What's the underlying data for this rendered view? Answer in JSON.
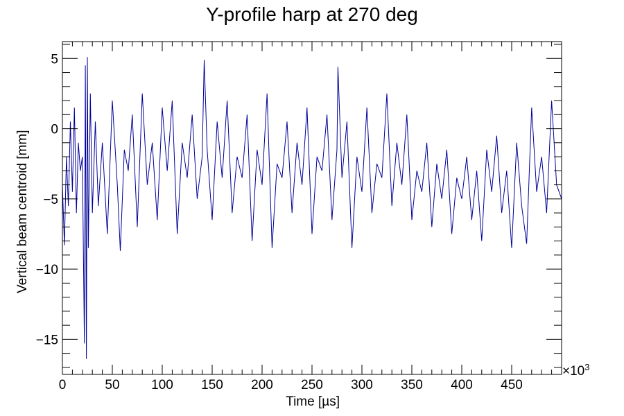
{
  "chart_data": {
    "type": "line",
    "title": "Y-profile harp at 270 deg",
    "xlabel": "Time [µs]",
    "ylabel": "Vertical beam centroid [mm]",
    "x_multiplier_label": "×10",
    "x_multiplier_exponent": "3",
    "xlim": [
      0,
      500
    ],
    "ylim": [
      -17.5,
      6.2
    ],
    "x_ticks": [
      0,
      50,
      100,
      150,
      200,
      250,
      300,
      350,
      400,
      450
    ],
    "x_tick_labels": [
      "0",
      "50",
      "100",
      "150",
      "200",
      "250",
      "300",
      "350",
      "400",
      "450"
    ],
    "y_ticks": [
      -15,
      -10,
      -5,
      0,
      5
    ],
    "y_tick_labels": [
      "−15",
      "−10",
      "−5",
      "0",
      "5"
    ],
    "line_color": "#000099",
    "frame_color": "#000000",
    "series": [
      {
        "x": [
          0,
          2,
          4,
          6,
          8,
          10,
          12,
          14,
          16,
          18,
          20,
          22,
          23,
          24,
          25,
          26,
          28,
          30,
          33,
          36,
          40,
          45,
          50,
          55,
          58,
          62,
          66,
          70,
          75,
          80,
          85,
          90,
          95,
          100,
          105,
          110,
          115,
          120,
          125,
          130,
          135,
          140,
          142,
          145,
          150,
          155,
          160,
          165,
          170,
          175,
          180,
          185,
          190,
          195,
          200,
          205,
          210,
          215,
          220,
          225,
          230,
          235,
          240,
          245,
          250,
          255,
          260,
          265,
          270,
          275,
          276,
          280,
          285,
          290,
          295,
          300,
          305,
          310,
          315,
          320,
          325,
          330,
          335,
          340,
          345,
          350,
          355,
          360,
          365,
          370,
          375,
          380,
          385,
          390,
          395,
          400,
          405,
          410,
          415,
          420,
          425,
          430,
          435,
          440,
          445,
          450,
          455,
          460,
          465,
          470,
          475,
          480,
          485,
          490,
          495,
          500
        ],
        "y": [
          -4.0,
          -8.3,
          -2.0,
          -5.5,
          0.5,
          -4.5,
          1.5,
          -6.0,
          -1.0,
          -3.0,
          -2.0,
          -15.3,
          4.5,
          -16.4,
          5.1,
          -8.5,
          2.5,
          -6.0,
          0.5,
          -5.5,
          -1.0,
          -7.5,
          2.0,
          -4.0,
          -8.7,
          -1.5,
          -3.0,
          1.0,
          -7.0,
          2.5,
          -4.0,
          -1.0,
          -6.5,
          1.5,
          -3.0,
          2.0,
          -7.5,
          -1.0,
          -3.5,
          1.0,
          -5.0,
          -2.0,
          4.9,
          -1.5,
          -6.5,
          0.5,
          -3.5,
          2.0,
          -6.0,
          -2.0,
          -3.5,
          1.0,
          -8.0,
          -1.5,
          -4.0,
          2.5,
          -8.5,
          -2.5,
          -3.5,
          0.5,
          -6.0,
          -1.0,
          -4.0,
          1.5,
          -7.5,
          -2.0,
          -3.0,
          1.0,
          -6.5,
          -1.5,
          4.4,
          -3.5,
          0.5,
          -8.5,
          -2.0,
          -4.5,
          1.5,
          -6.0,
          -2.5,
          -3.5,
          2.5,
          -5.5,
          -1.0,
          -4.0,
          1.0,
          -6.5,
          -3.0,
          -4.5,
          -1.0,
          -7.0,
          -2.5,
          -5.0,
          -1.5,
          -7.5,
          -3.5,
          -5.0,
          -2.0,
          -6.5,
          -3.0,
          -8.0,
          -1.5,
          -4.5,
          -0.5,
          -6.0,
          -3.0,
          -8.5,
          -1.0,
          -5.5,
          -8.2,
          1.5,
          -4.5,
          -2.0,
          -6.0,
          2.0,
          -4.0,
          -5.0
        ]
      }
    ]
  }
}
